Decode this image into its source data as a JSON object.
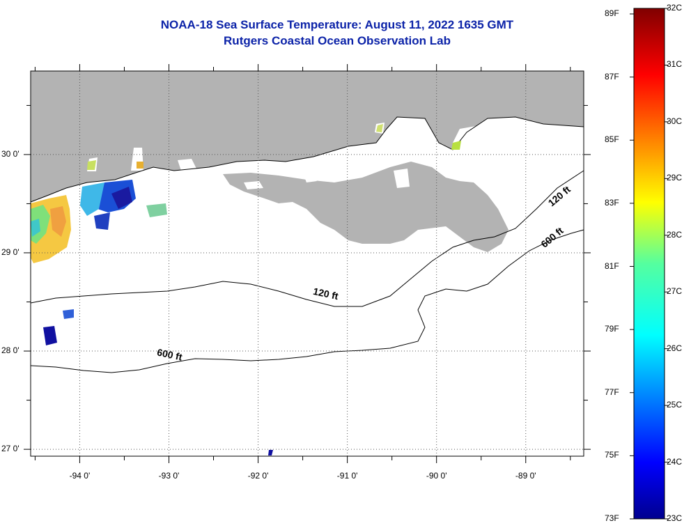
{
  "title": "NOAA-18 Sea Surface Temperature:  August 11, 2022 1635 GMT",
  "subtitle": "Rutgers Coastal Ocean Observation Lab",
  "map": {
    "lon_range": [
      -94.55,
      -88.35
    ],
    "lat_range": [
      26.93,
      30.85
    ],
    "lat_ticks": [
      {
        "label": "30 0'",
        "value": 30
      },
      {
        "label": "29 0'",
        "value": 29
      },
      {
        "label": "28 0'",
        "value": 28
      },
      {
        "label": "27 0'",
        "value": 27
      }
    ],
    "lon_ticks": [
      {
        "label": "-94 0'",
        "value": -94
      },
      {
        "label": "-93 0'",
        "value": -93
      },
      {
        "label": "-92 0'",
        "value": -92
      },
      {
        "label": "-91 0'",
        "value": -91
      },
      {
        "label": "-90 0'",
        "value": -90
      },
      {
        "label": "-89 0'",
        "value": -89
      }
    ],
    "contour_labels": [
      {
        "text": "120 ft",
        "lon": -91.25,
        "lat": 28.55
      },
      {
        "text": "600 ft",
        "lon": -93.0,
        "lat": 27.93
      },
      {
        "text": "120 ft",
        "lon": -88.6,
        "lat": 29.55
      },
      {
        "text": "600 ft",
        "lon": -88.68,
        "lat": 29.13
      }
    ],
    "land_color": "#b3b3b3",
    "grid": "dotted"
  },
  "colorbar": {
    "fahrenheit_labels": [
      "89F",
      "87F",
      "85F",
      "83F",
      "81F",
      "79F",
      "77F",
      "75F",
      "73F"
    ],
    "celsius_labels": [
      "32C",
      "31C",
      "30C",
      "29C",
      "28C",
      "27C",
      "26C",
      "25C",
      "24C",
      "23C"
    ],
    "range_c": [
      23,
      32
    ]
  }
}
